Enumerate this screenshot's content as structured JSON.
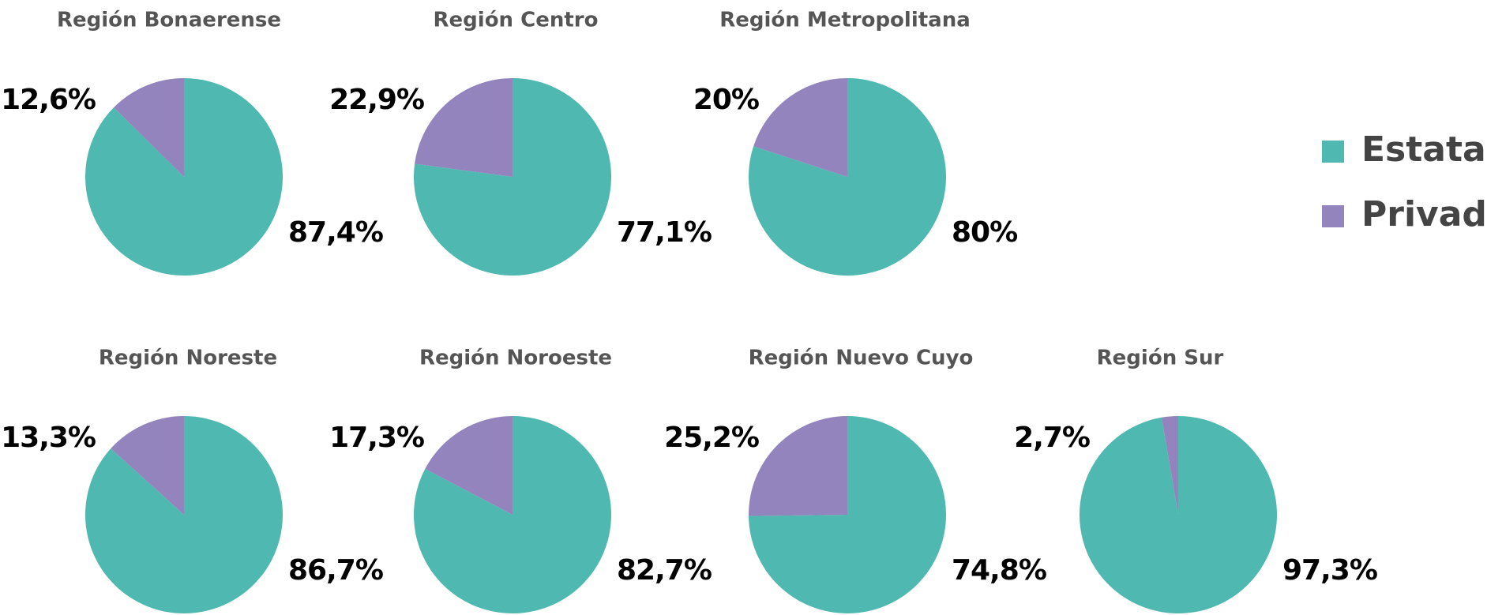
{
  "legend": {
    "entries": [
      {
        "label": "Estatal",
        "color": "#4fb8b0"
      },
      {
        "label": "Privado",
        "color": "#9484bd"
      }
    ]
  },
  "chart_data": [
    {
      "type": "pie",
      "title": "Región Bonaerense",
      "values": [
        87.4,
        12.6
      ],
      "value_labels": [
        "87,4%",
        "12,6%"
      ]
    },
    {
      "type": "pie",
      "title": "Región Centro",
      "values": [
        77.1,
        22.9
      ],
      "value_labels": [
        "77,1%",
        "22,9%"
      ]
    },
    {
      "type": "pie",
      "title": "Región Metropolitana",
      "values": [
        80,
        20
      ],
      "value_labels": [
        "80%",
        "20%"
      ]
    },
    {
      "type": "pie",
      "title": "Región Noreste",
      "values": [
        86.7,
        13.3
      ],
      "value_labels": [
        "86,7%",
        "13,3%"
      ]
    },
    {
      "type": "pie",
      "title": "Región Noroeste",
      "values": [
        82.7,
        17.3
      ],
      "value_labels": [
        "82,7%",
        "17,3%"
      ]
    },
    {
      "type": "pie",
      "title": "Región Nuevo Cuyo",
      "values": [
        74.8,
        25.2
      ],
      "value_labels": [
        "74,8%",
        "25,2%"
      ]
    },
    {
      "type": "pie",
      "title": "Región Sur",
      "values": [
        97.3,
        2.7
      ],
      "value_labels": [
        "97,3%",
        "2,7%"
      ]
    }
  ]
}
